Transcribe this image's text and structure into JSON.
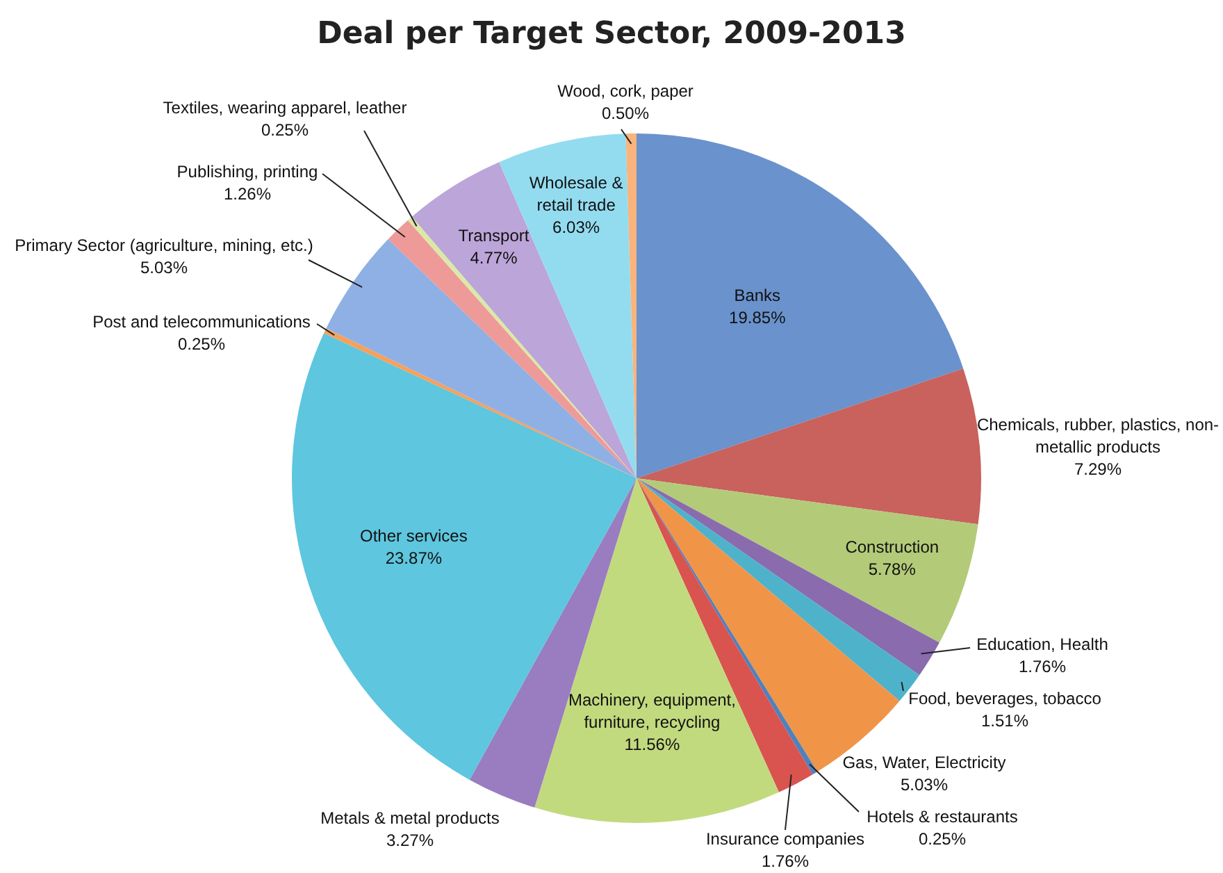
{
  "chart_data": {
    "type": "pie",
    "title": "Deal per Target Sector, 2009-2013",
    "categories": [
      "Banks",
      "Chemicals, rubber, plastics, non-metallic products",
      "Construction",
      "Education, Health",
      "Food, beverages, tobacco",
      "Gas, Water, Electricity",
      "Hotels & restaurants",
      "Insurance companies",
      "Machinery, equipment, furniture, recycling",
      "Metals & metal products",
      "Other services",
      "Post and telecommunications",
      "Primary Sector (agriculture, mining, etc.)",
      "Publishing, printing",
      "Textiles, wearing apparel, leather",
      "Transport",
      "Wholesale & retail trade",
      "Wood, cork, paper"
    ],
    "values": [
      19.85,
      7.29,
      5.78,
      1.76,
      1.51,
      5.03,
      0.25,
      1.76,
      11.56,
      3.27,
      23.87,
      0.25,
      5.03,
      1.26,
      0.25,
      4.77,
      6.03,
      0.5
    ],
    "value_labels": [
      "19.85%",
      "7.29%",
      "5.78%",
      "1.76%",
      "1.51%",
      "5.03%",
      "0.25%",
      "1.76%",
      "11.56%",
      "3.27%",
      "23.87%",
      "0.25%",
      "5.03%",
      "1.26%",
      "0.25%",
      "4.77%",
      "6.03%",
      "0.50%"
    ],
    "colors": [
      "#6a92cc",
      "#c9615d",
      "#b3cb78",
      "#8a6bae",
      "#4eb2ca",
      "#f09548",
      "#4f81bd",
      "#d9534f",
      "#c2da7e",
      "#9a7cc0",
      "#5ec6de",
      "#f7a05a",
      "#8fb0e4",
      "#ee9a98",
      "#dbe9a6",
      "#bca5d8",
      "#93dcf0",
      "#f8b47c"
    ],
    "legend": false
  }
}
